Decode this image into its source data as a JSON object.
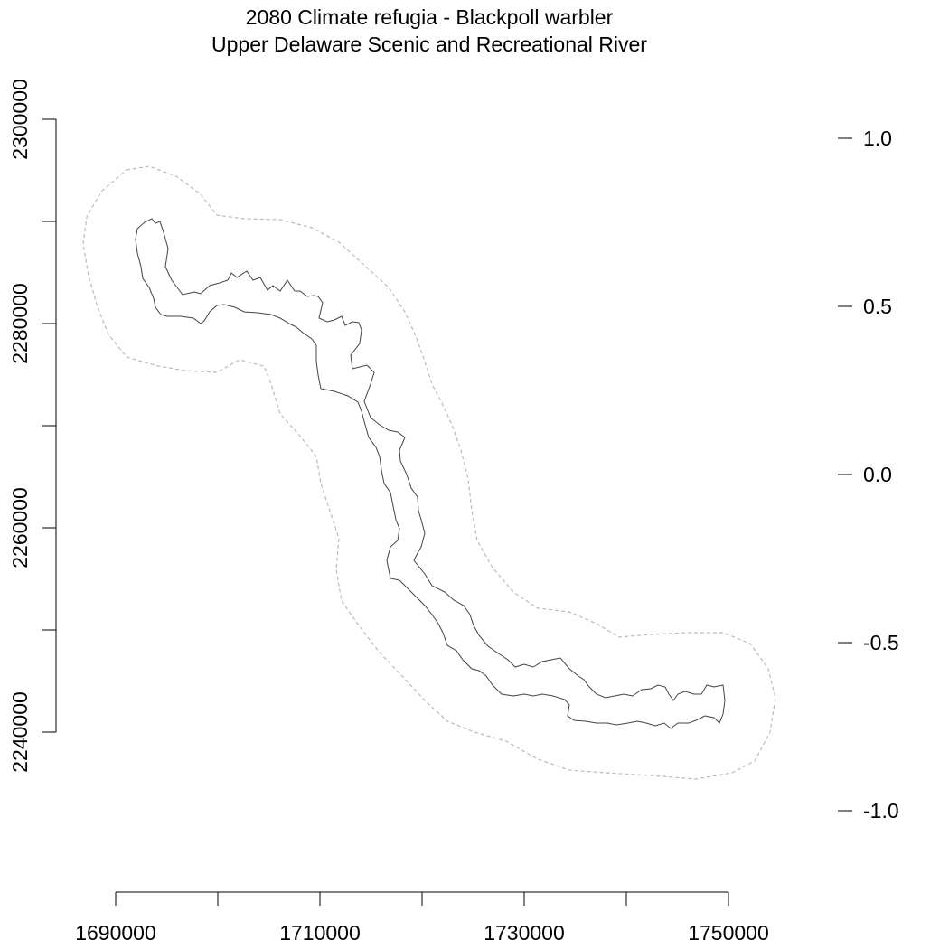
{
  "title": "2080 Climate refugia - Blackpoll warbler",
  "subtitle": "Upper Delaware Scenic and Recreational River",
  "chart_data": {
    "type": "map",
    "x_axis": {
      "ticks": [
        1690000,
        1710000,
        1730000,
        1750000
      ],
      "minor_ticks": [
        1700000,
        1720000,
        1740000
      ],
      "range": [
        1690000,
        1750000
      ]
    },
    "y_axis": {
      "ticks": [
        2240000,
        2260000,
        2280000,
        2300000
      ],
      "minor_ticks": [
        2250000,
        2270000,
        2290000
      ],
      "range": [
        2240000,
        2300000
      ]
    },
    "legend_axis": {
      "ticks": [
        "1.0",
        "0.5",
        "0.0",
        "-0.5",
        "-1.0"
      ]
    },
    "layers": [
      {
        "name": "park-boundary",
        "style": "solid",
        "color": "#444444"
      },
      {
        "name": "buffer",
        "style": "dashed",
        "color": "#bbbbbb"
      }
    ]
  }
}
